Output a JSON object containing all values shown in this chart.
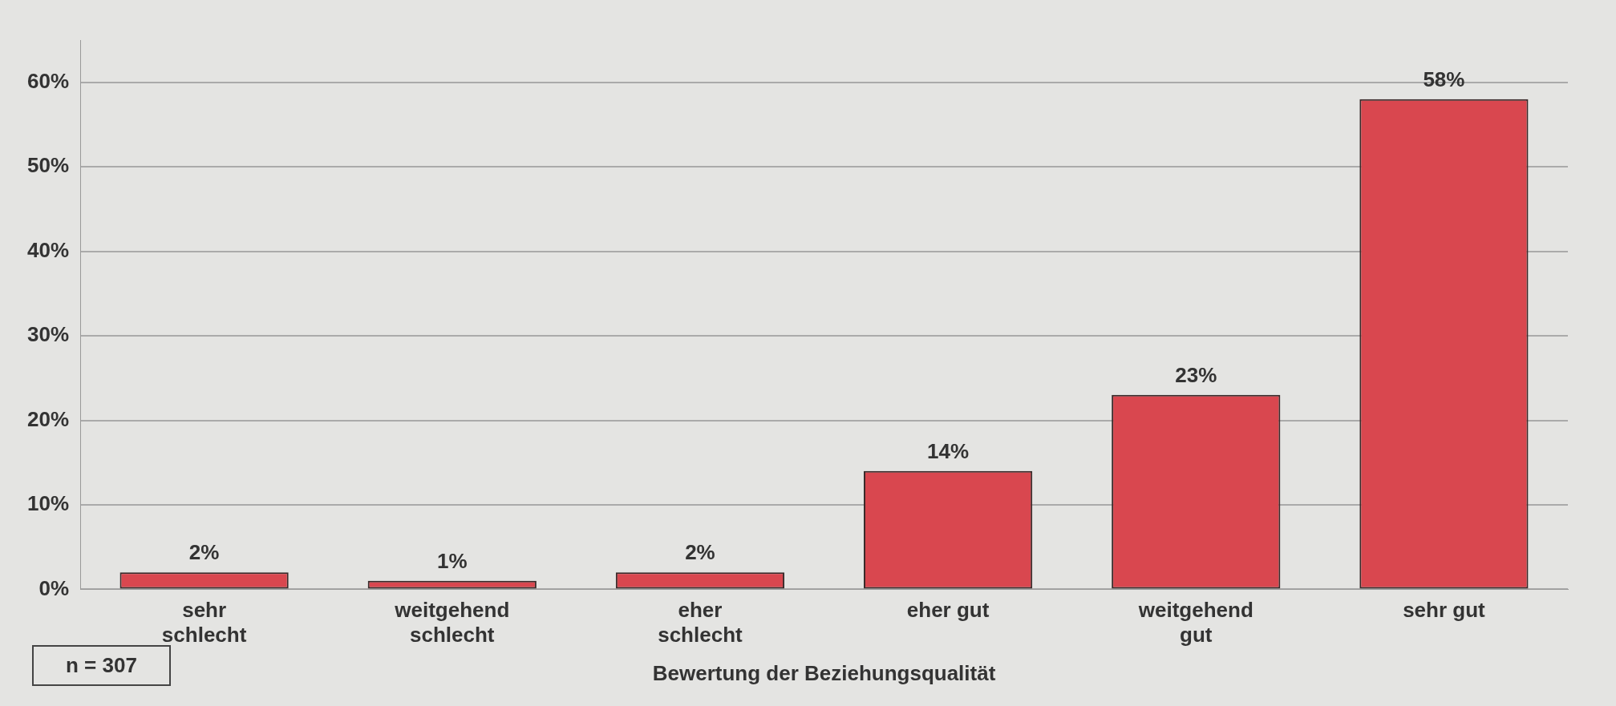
{
  "chart_data": {
    "type": "bar",
    "xlabel": "Bewertung der Beziehungsqualität",
    "categories": [
      "sehr schlecht",
      "weitgehend schlecht",
      "eher schlecht",
      "eher gut",
      "weitgehend gut",
      "sehr gut"
    ],
    "values": [
      2,
      1,
      2,
      14,
      23,
      58
    ],
    "value_labels": [
      "2%",
      "1%",
      "2%",
      "14%",
      "23%",
      "58%"
    ],
    "color": "#d9474f",
    "ylim": [
      0,
      65
    ],
    "yticks": [
      {
        "value": 0,
        "label": "0%"
      },
      {
        "value": 10,
        "label": "10%"
      },
      {
        "value": 20,
        "label": "20%"
      },
      {
        "value": 30,
        "label": "30%"
      },
      {
        "value": 40,
        "label": "40%"
      },
      {
        "value": 50,
        "label": "50%"
      },
      {
        "value": 60,
        "label": "60%"
      }
    ],
    "grid": "y",
    "annotations": [
      "n = 307"
    ]
  }
}
